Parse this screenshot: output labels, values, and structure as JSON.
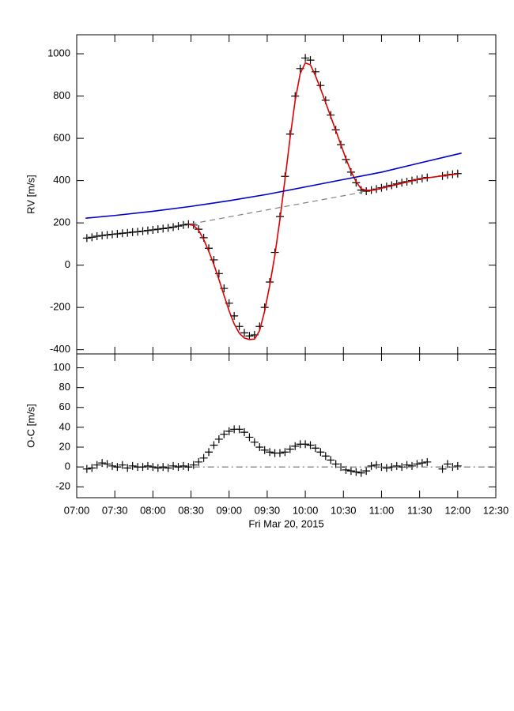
{
  "chart_data": [
    {
      "type": "line",
      "ylabel": "RV [m/s]",
      "xlim": [
        "07:00",
        "12:30"
      ],
      "ylim": [
        -420,
        1090
      ],
      "yticks": [
        -400,
        -200,
        0,
        200,
        400,
        600,
        800,
        1000
      ],
      "series": [
        {
          "style": "plus",
          "color": "#000000",
          "x": [
            "07:08",
            "07:12",
            "07:16",
            "07:20",
            "07:24",
            "07:28",
            "07:32",
            "07:36",
            "07:40",
            "07:44",
            "07:48",
            "07:52",
            "07:56",
            "08:00",
            "08:04",
            "08:08",
            "08:12",
            "08:16",
            "08:20",
            "08:24",
            "08:28",
            "08:32",
            "08:36",
            "08:40",
            "08:44",
            "08:48",
            "08:52",
            "08:56",
            "09:00",
            "09:04",
            "09:08",
            "09:12",
            "09:16",
            "09:20",
            "09:24",
            "09:28",
            "09:32",
            "09:36",
            "09:40",
            "09:44",
            "09:48",
            "09:52",
            "09:56",
            "10:00",
            "10:04",
            "10:08",
            "10:12",
            "10:16",
            "10:20",
            "10:24",
            "10:28",
            "10:32",
            "10:36",
            "10:40",
            "10:44",
            "10:48",
            "10:52",
            "10:56",
            "11:00",
            "11:04",
            "11:08",
            "11:12",
            "11:16",
            "11:20",
            "11:24",
            "11:28",
            "11:32",
            "11:36",
            "11:48",
            "11:52",
            "11:56",
            "12:00"
          ],
          "values": [
            128,
            132,
            137,
            140,
            143,
            146,
            148,
            151,
            153,
            156,
            158,
            161,
            164,
            167,
            170,
            173,
            176,
            180,
            185,
            190,
            194,
            190,
            170,
            130,
            80,
            25,
            -40,
            -110,
            -180,
            -240,
            -290,
            -320,
            -335,
            -330,
            -290,
            -200,
            -80,
            60,
            230,
            420,
            620,
            800,
            930,
            980,
            970,
            915,
            850,
            780,
            710,
            640,
            570,
            500,
            440,
            390,
            355,
            350,
            355,
            360,
            366,
            372,
            378,
            384,
            390,
            395,
            400,
            405,
            410,
            415,
            422,
            427,
            430,
            433
          ]
        },
        {
          "style": "solid",
          "color": "#e00000",
          "x": [
            "08:28",
            "08:32",
            "08:36",
            "08:40",
            "08:44",
            "08:48",
            "08:52",
            "08:56",
            "09:00",
            "09:04",
            "09:08",
            "09:12",
            "09:16",
            "09:20",
            "09:24",
            "09:28",
            "09:32",
            "09:36",
            "09:40",
            "09:44",
            "09:48",
            "09:52",
            "09:56",
            "10:00",
            "10:04",
            "10:08",
            "10:12",
            "10:16",
            "10:20",
            "10:24",
            "10:28",
            "10:32",
            "10:36",
            "10:40",
            "10:44",
            "10:48",
            "10:52",
            "10:56",
            "11:30",
            "12:00"
          ],
          "values": [
            194,
            188,
            165,
            121,
            65,
            3,
            -68,
            -143,
            -216,
            -278,
            -322,
            -345,
            -352,
            -350,
            -310,
            -217,
            -95,
            46,
            216,
            405,
            602,
            779,
            907,
            957,
            948,
            896,
            835,
            769,
            703,
            637,
            570,
            503,
            444,
            395,
            361,
            354,
            354,
            358,
            408,
            432
          ]
        },
        {
          "style": "solid",
          "color": "#0000cc",
          "x": [
            "07:07",
            "07:30",
            "08:00",
            "08:30",
            "09:00",
            "09:30",
            "10:00",
            "10:30",
            "11:00",
            "11:30",
            "12:03"
          ],
          "values": [
            222,
            235,
            255,
            278,
            305,
            335,
            370,
            405,
            440,
            483,
            530
          ]
        },
        {
          "style": "dashed",
          "color": "#808080",
          "x": [
            "08:30",
            "10:45"
          ],
          "values": [
            195,
            345
          ]
        }
      ]
    },
    {
      "type": "line",
      "ylabel": "O-C [m/s]",
      "xlabel": "Fri Mar 20, 2015",
      "xlim": [
        "07:00",
        "12:30"
      ],
      "ylim": [
        -31,
        114
      ],
      "xticks": [
        "07:00",
        "07:30",
        "08:00",
        "08:30",
        "09:00",
        "09:30",
        "10:00",
        "10:30",
        "11:00",
        "11:30",
        "12:00",
        "12:30"
      ],
      "yticks": [
        -20,
        0,
        20,
        40,
        60,
        80,
        100
      ],
      "series": [
        {
          "style": "plus",
          "color": "#000000",
          "x": [
            "07:08",
            "07:12",
            "07:16",
            "07:20",
            "07:24",
            "07:28",
            "07:32",
            "07:36",
            "07:40",
            "07:44",
            "07:48",
            "07:52",
            "07:56",
            "08:00",
            "08:04",
            "08:08",
            "08:12",
            "08:16",
            "08:20",
            "08:24",
            "08:28",
            "08:32",
            "08:36",
            "08:40",
            "08:44",
            "08:48",
            "08:52",
            "08:56",
            "09:00",
            "09:04",
            "09:08",
            "09:12",
            "09:16",
            "09:20",
            "09:24",
            "09:28",
            "09:32",
            "09:36",
            "09:40",
            "09:44",
            "09:48",
            "09:52",
            "09:56",
            "10:00",
            "10:04",
            "10:08",
            "10:12",
            "10:16",
            "10:20",
            "10:24",
            "10:28",
            "10:32",
            "10:36",
            "10:40",
            "10:44",
            "10:48",
            "10:52",
            "10:56",
            "11:00",
            "11:04",
            "11:08",
            "11:12",
            "11:16",
            "11:20",
            "11:24",
            "11:28",
            "11:32",
            "11:36",
            "11:48",
            "11:52",
            "11:56",
            "12:00"
          ],
          "values": [
            -2,
            -1,
            2,
            4,
            3,
            1,
            0,
            2,
            -1,
            1,
            0,
            0,
            1,
            0,
            -1,
            0,
            -1,
            1,
            0,
            1,
            0,
            2,
            5,
            9,
            15,
            22,
            28,
            33,
            36,
            38,
            38,
            35,
            30,
            25,
            20,
            17,
            15,
            14,
            14,
            15,
            18,
            21,
            23,
            23,
            22,
            19,
            15,
            11,
            7,
            3,
            0,
            -3,
            -4,
            -5,
            -6,
            -4,
            1,
            2,
            0,
            -1,
            0,
            1,
            0,
            2,
            1,
            3,
            4,
            5,
            -2,
            3,
            0,
            1
          ]
        },
        {
          "style": "dashdot",
          "color": "#808080",
          "x": [
            "08:32",
            "12:30"
          ],
          "values": [
            0,
            0
          ]
        }
      ]
    }
  ]
}
